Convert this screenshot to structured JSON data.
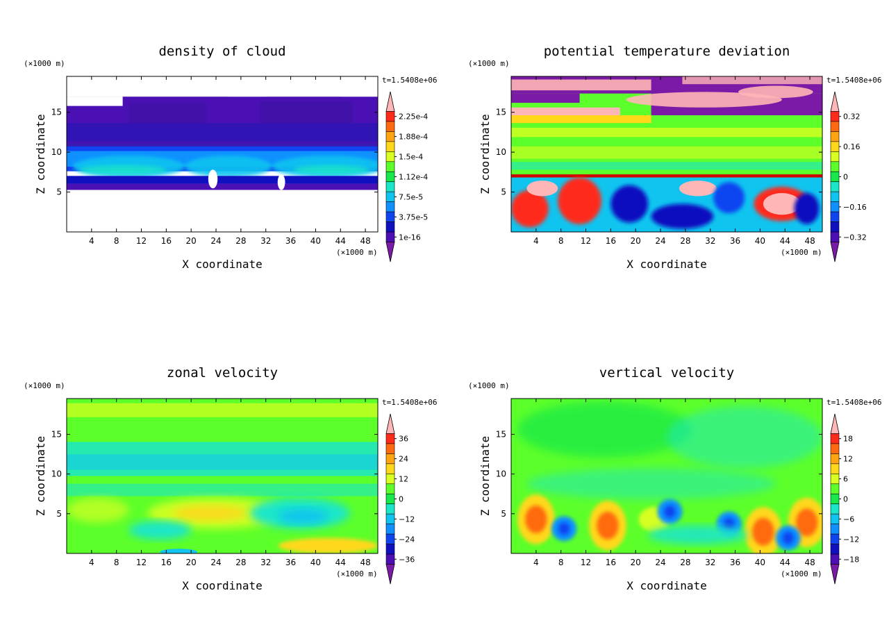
{
  "chart_data": [
    {
      "type": "heatmap",
      "title": "density of cloud",
      "xlabel": "X coordinate",
      "ylabel": "Z coordinate",
      "x_unit_label": "(×1000 m)",
      "y_unit_label": "(×1000 m)",
      "time_label": "t=1.5408e+06",
      "xlim": [
        0,
        50
      ],
      "ylim": [
        0,
        19.5
      ],
      "x_ticks": [
        "4",
        "8",
        "12",
        "16",
        "20",
        "24",
        "28",
        "32",
        "36",
        "40",
        "44",
        "48"
      ],
      "y_ticks": [
        "5",
        "10",
        "15"
      ],
      "colorbar": {
        "labels": [
          "2.25e-4",
          "1.88e-4",
          "1.5e-4",
          "1.12e-4",
          "7.5e-5",
          "3.75e-5",
          "1e-16"
        ],
        "colors": [
          "#ffb6b6",
          "#ff2a1a",
          "#ff6a10",
          "#ffa510",
          "#ffd81a",
          "#d8ff20",
          "#5cff2a",
          "#18e84a",
          "#1ae6c8",
          "#10c4f0",
          "#1090ff",
          "#1044f0",
          "#1010c0",
          "#4a10b4",
          "#7a1aa6"
        ]
      }
    },
    {
      "type": "heatmap",
      "title": "potential temperature deviation",
      "xlabel": "X coordinate",
      "ylabel": "Z coordinate",
      "x_unit_label": "(×1000 m)",
      "y_unit_label": "(×1000 m)",
      "time_label": "t=1.5408e+06",
      "xlim": [
        0,
        50
      ],
      "ylim": [
        0,
        19.5
      ],
      "x_ticks": [
        "4",
        "8",
        "12",
        "16",
        "20",
        "24",
        "28",
        "32",
        "36",
        "40",
        "44",
        "48"
      ],
      "y_ticks": [
        "5",
        "10",
        "15"
      ],
      "colorbar": {
        "labels": [
          "0.32",
          "0.16",
          "0",
          "−0.16",
          "−0.32"
        ],
        "colors": [
          "#ffb6b6",
          "#ff2a1a",
          "#ff6a10",
          "#ffa510",
          "#ffd81a",
          "#d8ff20",
          "#5cff2a",
          "#18e84a",
          "#1ae6c8",
          "#10c4f0",
          "#1090ff",
          "#1044f0",
          "#1010c0",
          "#4a10b4",
          "#7a1aa6"
        ]
      }
    },
    {
      "type": "heatmap",
      "title": "zonal velocity",
      "xlabel": "X coordinate",
      "ylabel": "Z coordinate",
      "x_unit_label": "(×1000 m)",
      "y_unit_label": "(×1000 m)",
      "time_label": "t=1.5408e+06",
      "xlim": [
        0,
        50
      ],
      "ylim": [
        0,
        19.5
      ],
      "x_ticks": [
        "4",
        "8",
        "12",
        "16",
        "20",
        "24",
        "28",
        "32",
        "36",
        "40",
        "44",
        "48"
      ],
      "y_ticks": [
        "5",
        "10",
        "15"
      ],
      "colorbar": {
        "labels": [
          "36",
          "24",
          "12",
          "0",
          "−12",
          "−24",
          "−36"
        ],
        "colors": [
          "#ffb6b6",
          "#ff2a1a",
          "#ff6a10",
          "#ffa510",
          "#ffd81a",
          "#d8ff20",
          "#5cff2a",
          "#18e84a",
          "#1ae6c8",
          "#10c4f0",
          "#1090ff",
          "#1044f0",
          "#1010c0",
          "#4a10b4",
          "#7a1aa6"
        ]
      }
    },
    {
      "type": "heatmap",
      "title": "vertical velocity",
      "xlabel": "X coordinate",
      "ylabel": "Z coordinate",
      "x_unit_label": "(×1000 m)",
      "y_unit_label": "(×1000 m)",
      "time_label": "t=1.5408e+06",
      "xlim": [
        0,
        50
      ],
      "ylim": [
        0,
        19.5
      ],
      "x_ticks": [
        "4",
        "8",
        "12",
        "16",
        "20",
        "24",
        "28",
        "32",
        "36",
        "40",
        "44",
        "48"
      ],
      "y_ticks": [
        "5",
        "10",
        "15"
      ],
      "colorbar": {
        "labels": [
          "18",
          "12",
          "6",
          "0",
          "−6",
          "−12",
          "−18"
        ],
        "colors": [
          "#ffb6b6",
          "#ff2a1a",
          "#ff6a10",
          "#ffa510",
          "#ffd81a",
          "#d8ff20",
          "#5cff2a",
          "#18e84a",
          "#1ae6c8",
          "#10c4f0",
          "#1090ff",
          "#1044f0",
          "#1010c0",
          "#4a10b4",
          "#7a1aa6"
        ]
      }
    }
  ]
}
